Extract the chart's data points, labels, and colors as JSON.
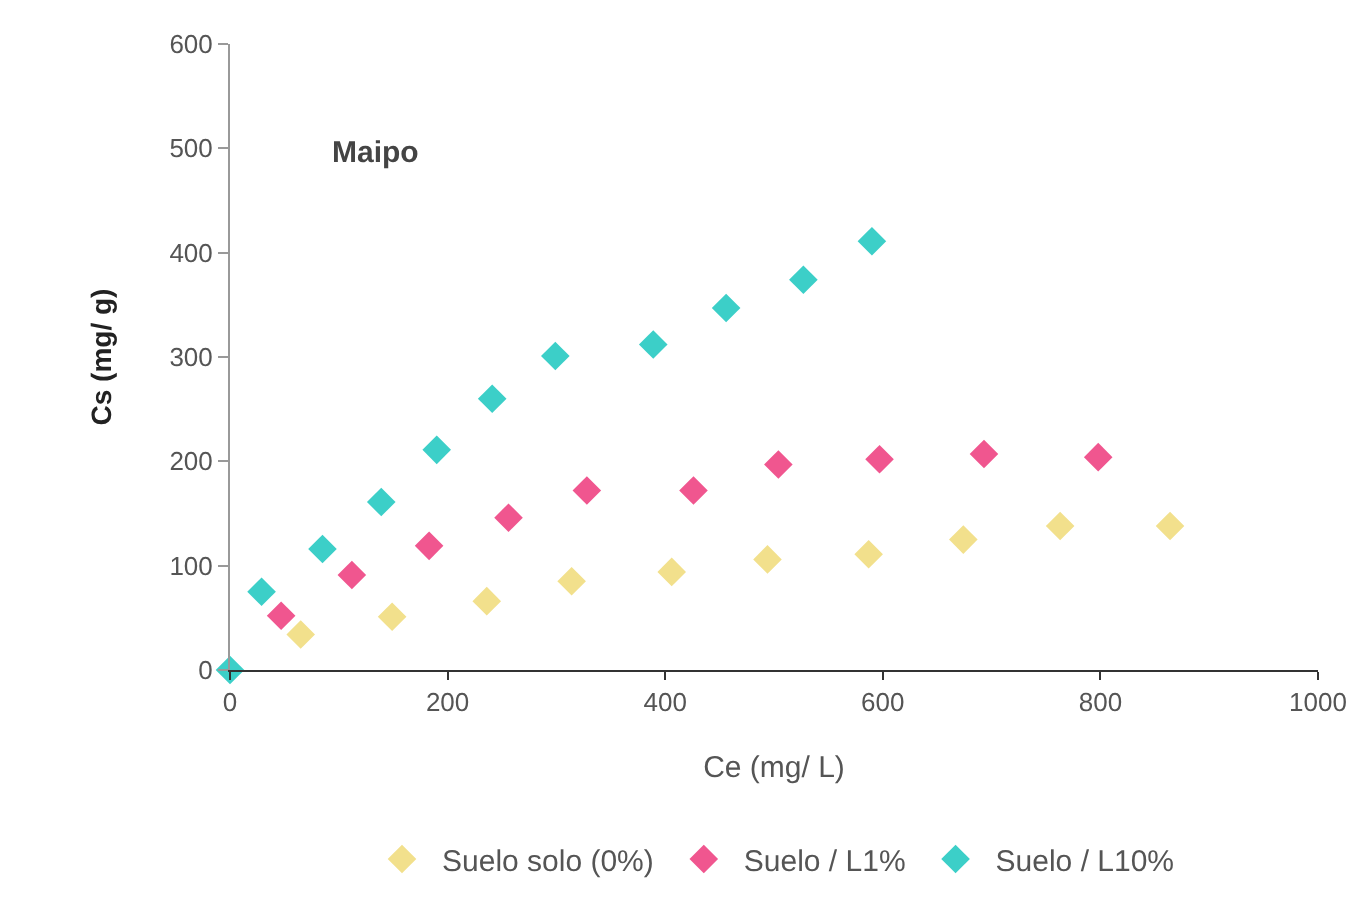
{
  "chart_data": {
    "type": "scatter",
    "xlabel": "Ce (mg/ L)",
    "ylabel": "Cs (mg/ g)",
    "annotations": [
      "Maipo"
    ],
    "xlim": [
      0,
      1000
    ],
    "xticks": [
      0,
      200,
      400,
      600,
      800,
      1000
    ],
    "ylim": [
      0,
      600
    ],
    "yticks": [
      0,
      100,
      200,
      300,
      400,
      500,
      600
    ],
    "grid": false,
    "legend": "bottom",
    "marker": "diamond",
    "series": [
      {
        "name": "Suelo solo (0%)",
        "color": "#f2e08c",
        "x": [
          65,
          149,
          236,
          314,
          406,
          494,
          587,
          674,
          763,
          864
        ],
        "values": [
          34,
          51,
          66,
          85,
          94,
          106,
          111,
          125,
          138,
          138
        ]
      },
      {
        "name": "Suelo / L1%",
        "color": "#f0568f",
        "x": [
          47,
          112,
          183,
          256,
          328,
          426,
          504,
          597,
          693,
          798
        ],
        "values": [
          52,
          91,
          119,
          146,
          172,
          172,
          197,
          202,
          207,
          204
        ]
      },
      {
        "name": "Suelo / L10%",
        "color": "#3ccfc8",
        "x": [
          0,
          29,
          85,
          139,
          190,
          241,
          299,
          389,
          456,
          527,
          590
        ],
        "values": [
          0,
          75,
          116,
          161,
          211,
          260,
          301,
          312,
          347,
          374,
          411
        ]
      }
    ]
  }
}
